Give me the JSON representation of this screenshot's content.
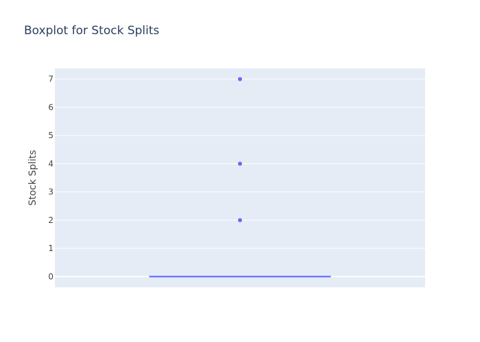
{
  "chart_data": {
    "type": "box",
    "title": "Boxplot for Stock Splits",
    "xlabel": "",
    "ylabel": "Stock Splits",
    "ylim": [
      -0.38,
      7.38
    ],
    "yticks": [
      0,
      1,
      2,
      3,
      4,
      5,
      6,
      7
    ],
    "grid": true,
    "series": [
      {
        "min": 0,
        "q1": 0,
        "median": 0,
        "q3": 0,
        "max": 0,
        "outliers": [
          7,
          4,
          2
        ]
      }
    ],
    "colors": {
      "plot_background": "#E5ECF6",
      "grid": "#ffffff",
      "box": "#636efa",
      "title": "#2a3f5f",
      "text": "#444444"
    }
  }
}
